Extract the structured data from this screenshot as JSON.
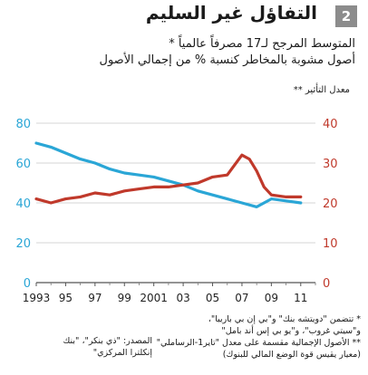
{
  "header": {
    "title": "التفاؤل غير السليم",
    "number": "2"
  },
  "subtitle": [
    "المتوسط المرجح لـ17 مصرفاً عالمياً *",
    "أصول مشوبة بالمخاطر كنسبة % من إجمالي الأصول"
  ],
  "axis_note": "معدل التأثير **",
  "footnotes": [
    "* تتضمن \"دويتشه بنك\" و\"بي إن بي باريبا\"،",
    "و\"سيتي غروب\"، و\"يو بي إس أند بامل\"",
    "** الأصول الإجمالية مقسمة على معدل \"تاير1-الرساملي\"",
    "(معيار يقيس قوة الوضع المالي للبنوك)"
  ],
  "source": [
    "المصدر: \"ذي بنكر\"، \"بنك",
    "إنكلترا المركزي\""
  ],
  "chart_data": {
    "type": "line",
    "title": "",
    "x_tick_labels": [
      "1993",
      "95",
      "97",
      "99",
      "2001",
      "03",
      "05",
      "07",
      "09",
      "11"
    ],
    "x_range": [
      1993,
      2012
    ],
    "left_axis": {
      "ticks": [
        "0",
        "20",
        "40",
        "60",
        "80"
      ],
      "range": [
        0,
        80
      ],
      "color": "#2aa6d6"
    },
    "right_axis": {
      "ticks": [
        "0",
        "10",
        "20",
        "30",
        "40"
      ],
      "range": [
        0,
        40
      ],
      "color": "#c0392b"
    },
    "grid": true,
    "series": [
      {
        "axis": "left",
        "color": "#2aa6d6",
        "x": [
          1993,
          1994,
          1995,
          1996,
          1997,
          1998,
          1999,
          2000,
          2001,
          2002,
          2003,
          2004,
          2005,
          2006,
          2007,
          2008,
          2009,
          2010,
          2011
        ],
        "values": [
          70,
          68,
          65,
          62,
          60,
          57,
          55,
          54,
          53,
          51,
          49,
          46,
          44,
          42,
          40,
          38,
          42,
          41,
          40
        ]
      },
      {
        "axis": "right",
        "color": "#c0392b",
        "x": [
          1993,
          1994,
          1995,
          1996,
          1997,
          1998,
          1999,
          2000,
          2001,
          2002,
          2003,
          2004,
          2005,
          2006,
          2007,
          2007.5,
          2008,
          2008.5,
          2009,
          2010,
          2011
        ],
        "values": [
          21,
          20,
          21,
          21.5,
          22.5,
          22,
          23,
          23.5,
          24,
          24,
          24.5,
          25,
          26.5,
          27,
          32,
          31,
          28,
          24,
          22,
          21.5,
          21.5
        ]
      }
    ]
  }
}
